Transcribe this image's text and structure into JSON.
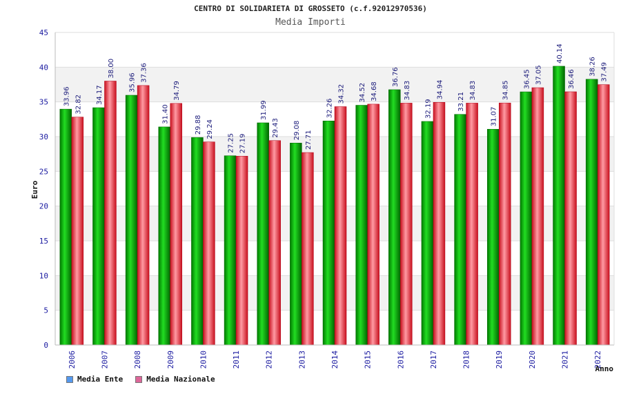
{
  "header": {
    "title": "CENTRO DI SOLIDARIETA DI GROSSETO (c.f.92012970536)",
    "subtitle": "Media Importi"
  },
  "chart_data": {
    "type": "bar",
    "title": "CENTRO DI SOLIDARIETA DI GROSSETO (c.f.92012970536)",
    "subtitle": "Media Importi",
    "xlabel": "Anno",
    "ylabel": "Euro",
    "ylim": [
      0,
      45
    ],
    "yticks": [
      0,
      5,
      10,
      15,
      20,
      25,
      30,
      35,
      40,
      45
    ],
    "categories": [
      "2006",
      "2007",
      "2008",
      "2009",
      "2010",
      "2011",
      "2012",
      "2013",
      "2014",
      "2015",
      "2016",
      "2017",
      "2018",
      "2019",
      "2020",
      "2021",
      "2022"
    ],
    "series": [
      {
        "name": "Media Ente",
        "color": "#00aa00",
        "labels": [
          "33.96",
          "34.17",
          "35.96",
          "31.40",
          "29.88",
          "27.25",
          "31.99",
          "29.08",
          "32.26",
          "34.52",
          "36.76",
          "32.19",
          "33.21",
          "31.07",
          "36.45",
          "40.14",
          "38.26"
        ],
        "values": [
          33.96,
          34.17,
          35.96,
          31.4,
          29.88,
          27.25,
          31.99,
          29.08,
          32.26,
          34.52,
          36.76,
          32.19,
          33.21,
          31.07,
          36.45,
          40.14,
          38.26
        ]
      },
      {
        "name": "Media Nazionale",
        "color": "#e8303a",
        "labels": [
          "32.82",
          "38.00",
          "37.36",
          "34.79",
          "29.24",
          "27.19",
          "29.43",
          "27.71",
          "34.32",
          "34.68",
          "34.83",
          "34.94",
          "34.83",
          "34.85",
          "37.05",
          "36.46",
          "37.49"
        ],
        "values": [
          32.82,
          38.0,
          37.36,
          34.79,
          29.24,
          27.19,
          29.43,
          27.71,
          34.32,
          34.68,
          34.83,
          34.94,
          34.83,
          34.85,
          37.05,
          36.46,
          37.49
        ]
      }
    ],
    "legend": {
      "position": "bottom-left",
      "entries": [
        "Media Ente",
        "Media Nazionale"
      ],
      "swatch_colors": [
        "#5599ee",
        "#dd6699"
      ]
    },
    "grid": true
  }
}
